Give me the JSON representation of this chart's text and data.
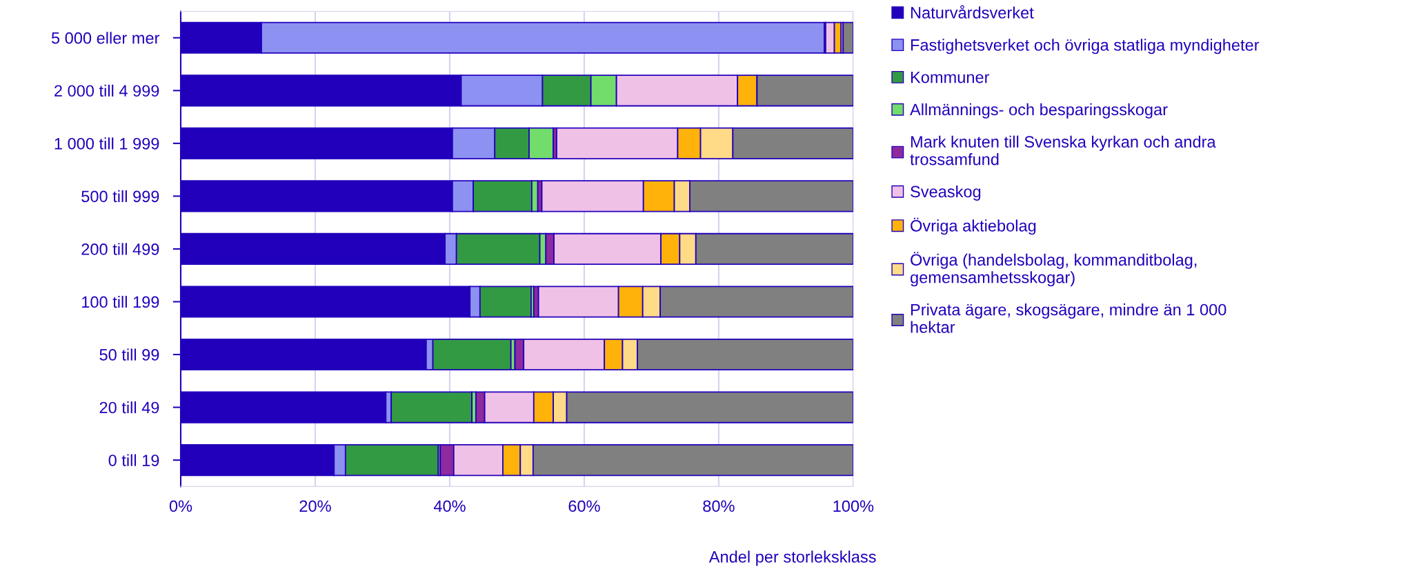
{
  "chart_data": {
    "type": "bar",
    "orientation": "horizontal",
    "stacked": true,
    "xlabel": "Andel per storleksklass",
    "categories": [
      "5 000 eller mer",
      "2 000 till 4 999",
      "1 000 till 1 999",
      "500 till 999",
      "200 till 499",
      "100 till 199",
      "50 till 99",
      "20 till 49",
      "0 till 19"
    ],
    "series": [
      {
        "name": "Naturvårdsverket",
        "color": "#2200bb",
        "values": [
          12.0,
          41.7,
          40.4,
          40.4,
          39.3,
          43.0,
          36.5,
          30.5,
          22.8
        ]
      },
      {
        "name": "Fastighetsverket och övriga statliga myndigheter",
        "color": "#8c91f2",
        "values": [
          83.7,
          12.1,
          6.3,
          3.1,
          1.7,
          1.5,
          1.0,
          0.8,
          1.7
        ]
      },
      {
        "name": "Kommuner",
        "color": "#339a44",
        "values": [
          0.2,
          7.2,
          5.1,
          8.7,
          12.4,
          7.6,
          11.6,
          12.0,
          13.8
        ]
      },
      {
        "name": "Allmännings- och besparingsskogar",
        "color": "#72dd6a",
        "values": [
          0,
          3.8,
          3.6,
          0.9,
          0.9,
          0.4,
          0.6,
          0.6,
          0.3
        ]
      },
      {
        "name": "Mark knuten till Svenska kyrkan och andra\ntrossamfund",
        "color": "#8e2a9e",
        "values": [
          0,
          0,
          0.5,
          0.6,
          1.2,
          0.7,
          1.3,
          1.3,
          2.0
        ]
      },
      {
        "name": "Sveaskog",
        "color": "#f0c1e6",
        "values": [
          1.3,
          18.0,
          18.0,
          15.1,
          15.9,
          11.9,
          12.0,
          7.3,
          7.3
        ]
      },
      {
        "name": "Övriga aktiebolag",
        "color": "#ffb20a",
        "values": [
          1.0,
          2.9,
          3.4,
          4.6,
          2.8,
          3.6,
          2.7,
          2.9,
          2.6
        ]
      },
      {
        "name": "Övriga (handelsbolag, kommanditbolag,\ngemensamhetsskogar)",
        "color": "#ffda87",
        "values": [
          0.3,
          null,
          4.8,
          2.3,
          2.4,
          2.6,
          2.2,
          2.0,
          1.9
        ]
      },
      {
        "name": "Privata ägare, skogsägare, mindre än 1 000\nhektar",
        "color": "#808080",
        "values": [
          1.5,
          14.3,
          17.9,
          24.3,
          23.4,
          28.7,
          32.1,
          42.6,
          47.6
        ]
      }
    ],
    "xlim": [
      0,
      100
    ],
    "xticks": [
      {
        "value": 0,
        "label": "0%"
      },
      {
        "value": 20,
        "label": "20%"
      },
      {
        "value": 40,
        "label": "40%"
      },
      {
        "value": 60,
        "label": "60%"
      },
      {
        "value": 80,
        "label": "80%"
      },
      {
        "value": 100,
        "label": "100%"
      }
    ],
    "grid": "x",
    "legend": "right"
  }
}
